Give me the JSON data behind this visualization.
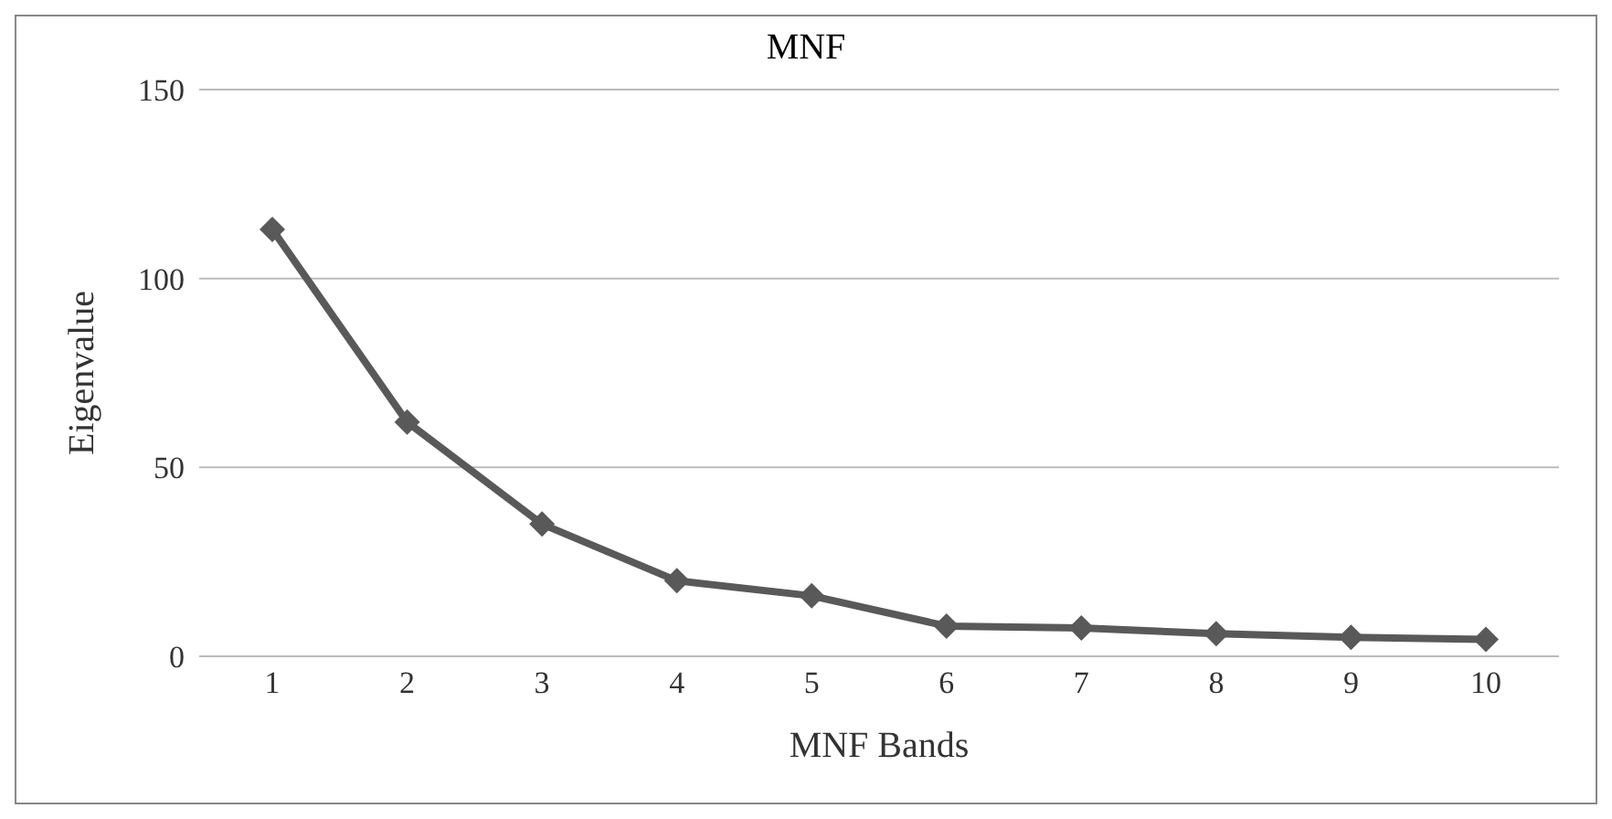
{
  "chart_data": {
    "type": "line",
    "title": "MNF",
    "xlabel": "MNF Bands",
    "ylabel": "Eigenvalue",
    "categories": [
      "1",
      "2",
      "3",
      "4",
      "5",
      "6",
      "7",
      "8",
      "9",
      "10"
    ],
    "series": [
      {
        "color": "#595959",
        "values": [
          113,
          62,
          35,
          20,
          16,
          8,
          7.5,
          6,
          5,
          4.5
        ]
      }
    ],
    "ylim": [
      0,
      150
    ],
    "yticks": [
      0,
      50,
      100,
      150
    ],
    "grid": "y",
    "marker": "diamond",
    "line_style": "solid",
    "legend": false
  }
}
